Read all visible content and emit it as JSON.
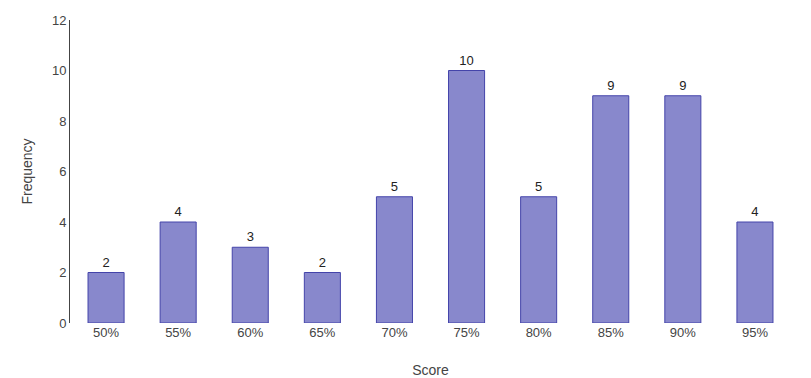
{
  "chart_data": {
    "type": "bar",
    "categories": [
      "50%",
      "55%",
      "60%",
      "65%",
      "70%",
      "75%",
      "80%",
      "85%",
      "90%",
      "95%"
    ],
    "values": [
      2,
      4,
      3,
      2,
      5,
      10,
      5,
      9,
      9,
      4
    ],
    "color": "#8888cc",
    "xlabel": "Score",
    "ylabel": "Frequency",
    "ylim": [
      0,
      12
    ],
    "yticks": [
      0,
      2,
      4,
      6,
      8,
      10,
      12
    ],
    "grid": false,
    "data_labels": true
  }
}
